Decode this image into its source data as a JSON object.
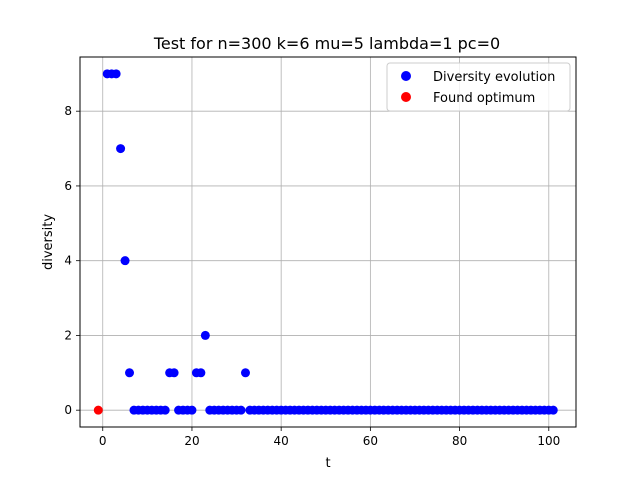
{
  "chart_data": {
    "type": "scatter",
    "title": "Test for n=300 k=6 mu=5 lambda=1 pc=0",
    "xlabel": "t",
    "ylabel": "diversity",
    "xlim": [
      -5.1,
      106.1
    ],
    "ylim": [
      -0.45,
      9.45
    ],
    "x_ticks": [
      0,
      20,
      40,
      60,
      80,
      100
    ],
    "y_ticks": [
      0,
      2,
      4,
      6,
      8
    ],
    "grid": true,
    "legend_position": "top-right",
    "series": [
      {
        "name": "Diversity evolution",
        "color": "#0000ff",
        "x": [
          1,
          2,
          3,
          4,
          5,
          6,
          7,
          8,
          9,
          10,
          11,
          12,
          13,
          14,
          15,
          16,
          17,
          18,
          19,
          20,
          21,
          22,
          23,
          24,
          25,
          26,
          27,
          28,
          29,
          30,
          31,
          32,
          33,
          34,
          35,
          36,
          37,
          38,
          39,
          40,
          41,
          42,
          43,
          44,
          45,
          46,
          47,
          48,
          49,
          50,
          51,
          52,
          53,
          54,
          55,
          56,
          57,
          58,
          59,
          60,
          61,
          62,
          63,
          64,
          65,
          66,
          67,
          68,
          69,
          70,
          71,
          72,
          73,
          74,
          75,
          76,
          77,
          78,
          79,
          80,
          81,
          82,
          83,
          84,
          85,
          86,
          87,
          88,
          89,
          90,
          91,
          92,
          93,
          94,
          95,
          96,
          97,
          98,
          99,
          100,
          101
        ],
        "y": [
          9,
          9,
          9,
          7,
          4,
          1,
          0,
          0,
          0,
          0,
          0,
          0,
          0,
          0,
          1,
          1,
          0,
          0,
          0,
          0,
          1,
          1,
          2,
          0,
          0,
          0,
          0,
          0,
          0,
          0,
          0,
          1,
          0,
          0,
          0,
          0,
          0,
          0,
          0,
          0,
          0,
          0,
          0,
          0,
          0,
          0,
          0,
          0,
          0,
          0,
          0,
          0,
          0,
          0,
          0,
          0,
          0,
          0,
          0,
          0,
          0,
          0,
          0,
          0,
          0,
          0,
          0,
          0,
          0,
          0,
          0,
          0,
          0,
          0,
          0,
          0,
          0,
          0,
          0,
          0,
          0,
          0,
          0,
          0,
          0,
          0,
          0,
          0,
          0,
          0,
          0,
          0,
          0,
          0,
          0,
          0,
          0,
          0,
          0,
          0,
          0
        ]
      },
      {
        "name": "Found optimum",
        "color": "#ff0000",
        "x": [
          -1
        ],
        "y": [
          0
        ]
      }
    ]
  }
}
